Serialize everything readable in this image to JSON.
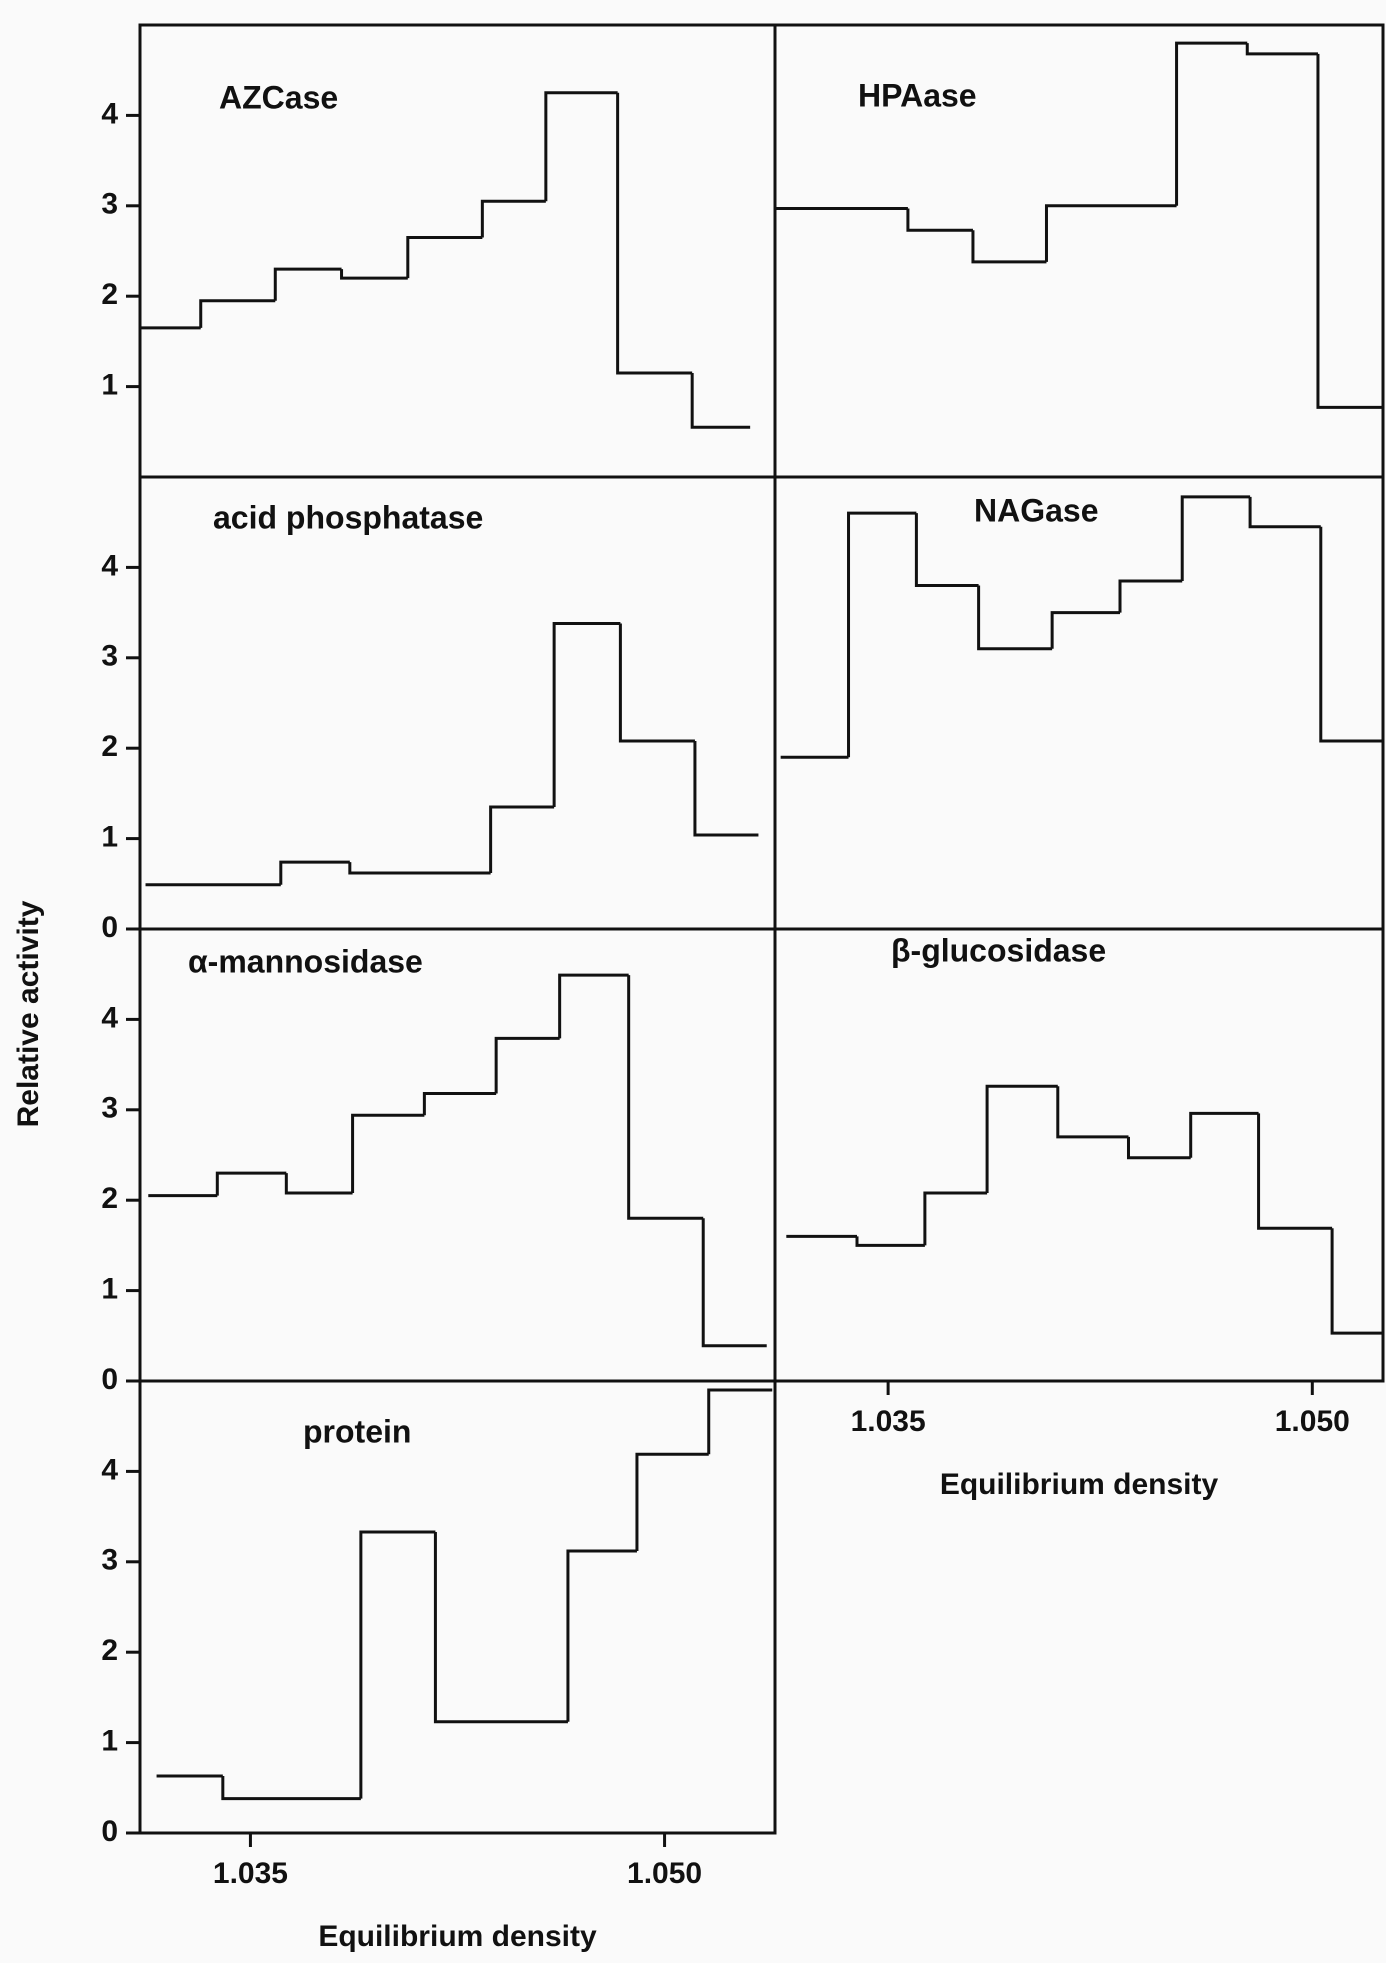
{
  "ylabel": "Relative activity",
  "chart_data": [
    {
      "type": "histogram",
      "title": "AZCase",
      "bins": [
        1.031,
        1.0332,
        1.0359,
        1.0383,
        1.0407,
        1.0434,
        1.0457,
        1.0483,
        1.051,
        1.0531
      ],
      "values": [
        1.65,
        1.95,
        2.3,
        2.2,
        2.65,
        3.05,
        4.25,
        1.15,
        0.55
      ],
      "xlim": [
        1.031,
        1.054
      ],
      "ylim": [
        0,
        5
      ],
      "yticks": [
        1,
        2,
        3,
        4
      ],
      "color": "#111111"
    },
    {
      "type": "histogram",
      "title": "HPAase",
      "bins": [
        1.031,
        1.0357,
        1.038,
        1.0406,
        1.0452,
        1.0477,
        1.0502,
        1.0525
      ],
      "values": [
        2.97,
        2.73,
        2.38,
        3.0,
        4.8,
        4.68,
        0.77
      ],
      "xlim": [
        1.031,
        1.0525
      ],
      "ylim": [
        0,
        5
      ],
      "color": "#111111"
    },
    {
      "type": "histogram",
      "title": "acid phosphatase",
      "bins": [
        1.0312,
        1.0361,
        1.0386,
        1.0437,
        1.046,
        1.0484,
        1.0511,
        1.0534
      ],
      "values": [
        0.49,
        0.74,
        0.62,
        1.35,
        3.38,
        2.08,
        1.04
      ],
      "xlim": [
        1.031,
        1.054
      ],
      "ylim": [
        0,
        5
      ],
      "yticks": [
        0,
        1,
        2,
        3,
        4
      ],
      "color": "#111111"
    },
    {
      "type": "histogram",
      "title": "NAGase",
      "bins": [
        1.0312,
        1.0336,
        1.036,
        1.0382,
        1.0408,
        1.0432,
        1.0454,
        1.0478,
        1.0503,
        1.0525
      ],
      "values": [
        1.9,
        4.6,
        3.8,
        3.1,
        3.5,
        3.85,
        4.78,
        4.45,
        2.08
      ],
      "xlim": [
        1.031,
        1.0525
      ],
      "ylim": [
        0,
        5
      ],
      "color": "#111111"
    },
    {
      "type": "histogram",
      "title": "α-mannosidase",
      "bins": [
        1.0313,
        1.0338,
        1.0363,
        1.0387,
        1.0413,
        1.0439,
        1.0462,
        1.0487,
        1.0514,
        1.0537
      ],
      "values": [
        2.05,
        2.3,
        2.08,
        2.94,
        3.18,
        3.79,
        4.49,
        1.8,
        0.39
      ],
      "xlim": [
        1.031,
        1.054
      ],
      "ylim": [
        0,
        5
      ],
      "yticks": [
        0,
        1,
        2,
        3,
        4
      ],
      "color": "#111111"
    },
    {
      "type": "histogram",
      "title": "β-glucosidase",
      "bins": [
        1.0314,
        1.0339,
        1.0363,
        1.0385,
        1.041,
        1.0435,
        1.0457,
        1.0481,
        1.0507,
        1.0525
      ],
      "values": [
        1.6,
        1.5,
        2.08,
        3.26,
        2.7,
        2.47,
        2.96,
        1.69,
        0.53
      ],
      "xlim": [
        1.031,
        1.0525
      ],
      "ylim": [
        0,
        5
      ],
      "xticks": [
        1.035,
        {
          "value": 1.05,
          "label": "1.050"
        }
      ],
      "xlabel": "Equilibrium density",
      "color": "#111111"
    },
    {
      "type": "histogram",
      "title": "protein",
      "bins": [
        1.0316,
        1.034,
        1.039,
        1.0417,
        1.0465,
        1.049,
        1.0516,
        1.0539
      ],
      "values": [
        0.63,
        0.38,
        3.33,
        1.23,
        3.12,
        4.19,
        4.9
      ],
      "xlim": [
        1.031,
        1.054
      ],
      "ylim": [
        0,
        5
      ],
      "yticks": [
        0,
        1,
        2,
        3,
        4
      ],
      "xticks": [
        1.035,
        {
          "value": 1.05,
          "label": "1.050"
        }
      ],
      "xlabel": "Equilibrium density",
      "color": "#111111"
    }
  ]
}
